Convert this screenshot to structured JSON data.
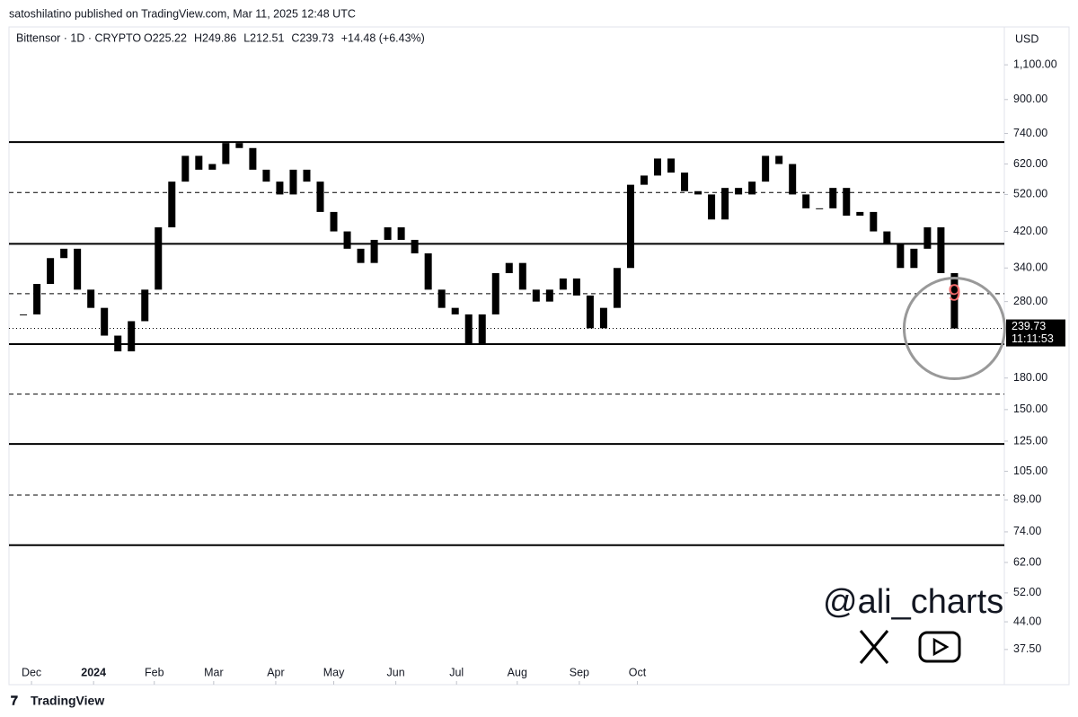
{
  "header": {
    "published": "satoshilatino published on TradingView.com, Mar 11, 2025 12:48 UTC",
    "footer": "TradingView",
    "watermark": "@ali_charts"
  },
  "chart_data": {
    "type": "candlestick",
    "symbol": "Bittensor · 1D · CRYPTO",
    "ohlc": [
      "O225.22",
      "H249.86",
      "L212.51",
      "C239.73",
      "+14.48 (+6.43%)"
    ],
    "currency": "USD",
    "countdown": "11:11:53",
    "annotation": "9",
    "annotation_color": "#f26b6b",
    "color": "#000000",
    "log_scale": true,
    "values": [
      260,
      310,
      360,
      380,
      300,
      270,
      230,
      210,
      250,
      300,
      430,
      560,
      650,
      600,
      620,
      700,
      680,
      600,
      560,
      520,
      600,
      560,
      470,
      420,
      380,
      350,
      400,
      430,
      400,
      370,
      300,
      270,
      260,
      220,
      260,
      330,
      350,
      300,
      280,
      300,
      320,
      290,
      240,
      270,
      340,
      550,
      580,
      640,
      590,
      530,
      520,
      450,
      540,
      520,
      560,
      650,
      620,
      520,
      480,
      480,
      540,
      460,
      470,
      420,
      390,
      340,
      380,
      430,
      330,
      239.73
    ],
    "xlim": [
      -1.07,
      72.7
    ],
    "xticks": [
      {
        "value": 0.6,
        "label": "Dec"
      },
      {
        "value": 5.2,
        "label": "2024"
      },
      {
        "value": 9.7,
        "label": "Feb"
      },
      {
        "value": 14.1,
        "label": "Mar"
      },
      {
        "value": 18.7,
        "label": "Apr"
      },
      {
        "value": 23,
        "label": "May"
      },
      {
        "value": 27.6,
        "label": "Jun"
      },
      {
        "value": 32.1,
        "label": "Jul"
      },
      {
        "value": 36.6,
        "label": "Aug"
      },
      {
        "value": 41.2,
        "label": "Sep"
      },
      {
        "value": 45.5,
        "label": "Oct"
      }
    ],
    "ylim": [
      30.6,
      1369
    ],
    "yticks": [
      {
        "value": 1100,
        "label": "1,100.00"
      },
      {
        "value": 900,
        "label": "900.00"
      },
      {
        "value": 740,
        "label": "740.00"
      },
      {
        "value": 620,
        "label": "620.00"
      },
      {
        "value": 520,
        "label": "520.00"
      },
      {
        "value": 420,
        "label": "420.00"
      },
      {
        "value": 340,
        "label": "340.00"
      },
      {
        "value": 280,
        "label": "280.00"
      },
      {
        "value": 180,
        "label": "180.00"
      },
      {
        "value": 150,
        "label": "150.00"
      },
      {
        "value": 125,
        "label": "125.00"
      },
      {
        "value": 105,
        "label": "105.00"
      },
      {
        "value": 89,
        "label": "89.00"
      },
      {
        "value": 74,
        "label": "74.00"
      },
      {
        "value": 62,
        "label": "62.00"
      },
      {
        "value": 52,
        "label": "52.00"
      },
      {
        "value": 44,
        "label": "44.00"
      },
      {
        "value": 37.5,
        "label": "37.50"
      }
    ],
    "levels": [
      {
        "value": 704,
        "style": "solid"
      },
      {
        "value": 526,
        "style": "dashed"
      },
      {
        "value": 391,
        "style": "solid"
      },
      {
        "value": 293,
        "style": "dashed"
      },
      {
        "value": 219,
        "style": "solid"
      },
      {
        "value": 164,
        "style": "dashed"
      },
      {
        "value": 123,
        "style": "solid"
      },
      {
        "value": 91.5,
        "style": "dashed"
      },
      {
        "value": 68.5,
        "style": "solid"
      }
    ]
  }
}
